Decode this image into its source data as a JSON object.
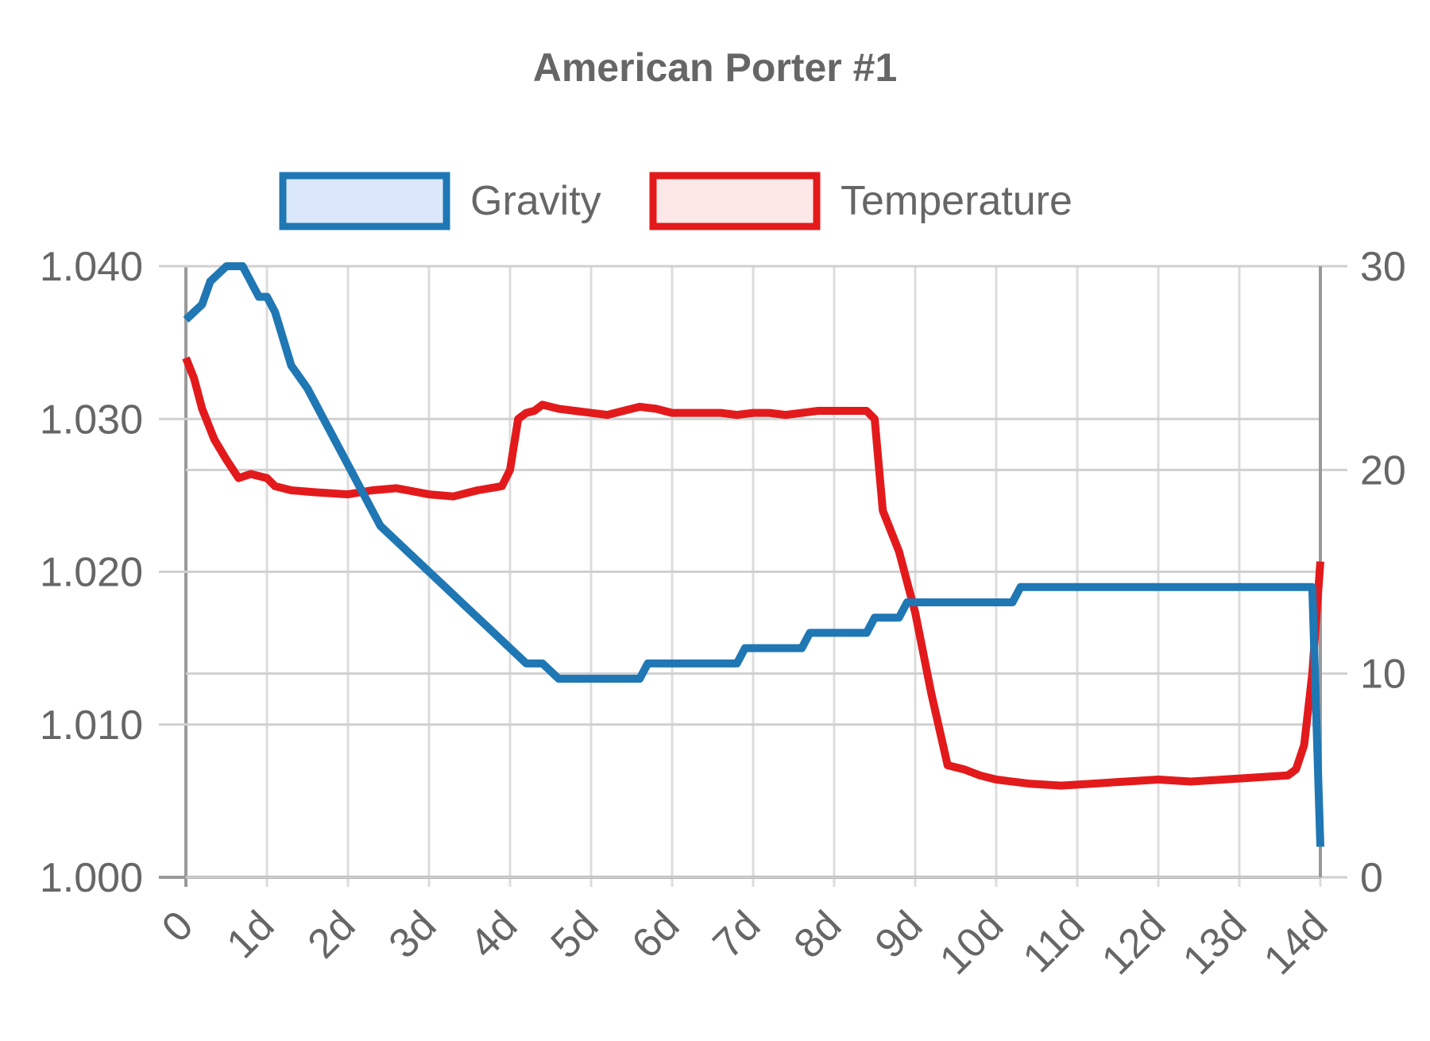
{
  "chart_data": {
    "type": "line",
    "title": "American Porter #1",
    "x_tick_labels": [
      "0",
      "1d",
      "2d",
      "3d",
      "4d",
      "5d",
      "6d",
      "7d",
      "8d",
      "9d",
      "10d",
      "11d",
      "12d",
      "13d",
      "14d"
    ],
    "xlim": [
      0,
      14
    ],
    "y_left": {
      "label": "",
      "tick_labels": [
        "1.000",
        "1.010",
        "1.020",
        "1.030",
        "1.040"
      ],
      "ylim": [
        1.0,
        1.04
      ]
    },
    "y_right": {
      "label": "",
      "tick_labels": [
        "0",
        "10",
        "20",
        "30"
      ],
      "ylim": [
        0,
        30
      ]
    },
    "grid": true,
    "legend": "top",
    "series": [
      {
        "name": "Gravity",
        "axis": "left",
        "color": "#1f77b4",
        "fill": "#dbe8fb",
        "x": [
          0,
          0.1,
          0.2,
          0.3,
          0.4,
          0.5,
          0.6,
          0.7,
          0.8,
          0.9,
          1.0,
          1.1,
          1.3,
          1.5,
          1.6,
          1.7,
          1.8,
          2.0,
          2.2,
          2.4,
          2.6,
          2.8,
          3.0,
          3.2,
          3.4,
          3.6,
          3.8,
          4.0,
          4.2,
          4.4,
          4.6,
          4.8,
          5.0,
          5.3,
          5.6,
          5.7,
          6.0,
          6.4,
          6.8,
          6.9,
          7.2,
          7.6,
          7.7,
          8.0,
          8.4,
          8.5,
          8.8,
          8.9,
          9.3,
          10.0,
          10.2,
          10.3,
          11.0,
          12.0,
          13.0,
          13.7,
          13.9,
          14.0
        ],
        "values": [
          1.0365,
          1.037,
          1.0375,
          1.039,
          1.0395,
          1.04,
          1.04,
          1.04,
          1.039,
          1.038,
          1.038,
          1.037,
          1.0335,
          1.032,
          1.031,
          1.03,
          1.029,
          1.027,
          1.025,
          1.023,
          1.022,
          1.021,
          1.02,
          1.019,
          1.018,
          1.017,
          1.016,
          1.015,
          1.014,
          1.014,
          1.013,
          1.013,
          1.013,
          1.013,
          1.013,
          1.014,
          1.014,
          1.014,
          1.014,
          1.015,
          1.015,
          1.015,
          1.016,
          1.016,
          1.016,
          1.017,
          1.017,
          1.018,
          1.018,
          1.018,
          1.018,
          1.019,
          1.019,
          1.019,
          1.019,
          1.019,
          1.019,
          1.002
        ]
      },
      {
        "name": "Temperature",
        "axis": "right",
        "color": "#e31a1c",
        "fill": "#fde8e8",
        "x": [
          0,
          0.1,
          0.2,
          0.35,
          0.5,
          0.65,
          0.8,
          1.0,
          1.1,
          1.3,
          1.6,
          2.0,
          2.3,
          2.6,
          3.0,
          3.3,
          3.6,
          3.9,
          4.0,
          4.1,
          4.2,
          4.3,
          4.4,
          4.6,
          4.8,
          5.0,
          5.2,
          5.4,
          5.6,
          5.8,
          6.0,
          6.2,
          6.4,
          6.6,
          6.8,
          7.0,
          7.2,
          7.4,
          7.6,
          7.8,
          8.0,
          8.2,
          8.4,
          8.5,
          8.6,
          8.8,
          9.0,
          9.2,
          9.4,
          9.6,
          9.8,
          10.0,
          10.4,
          10.8,
          11.2,
          11.6,
          12.0,
          12.4,
          12.8,
          13.2,
          13.6,
          13.7,
          13.8,
          13.9,
          14.0
        ],
        "values": [
          25.5,
          24.5,
          23,
          21.5,
          20.5,
          19.6,
          19.8,
          19.6,
          19.2,
          19.0,
          18.9,
          18.8,
          19.0,
          19.1,
          18.8,
          18.7,
          19.0,
          19.2,
          20.0,
          22.5,
          22.8,
          22.9,
          23.2,
          23.0,
          22.9,
          22.8,
          22.7,
          22.9,
          23.1,
          23.0,
          22.8,
          22.8,
          22.8,
          22.8,
          22.7,
          22.8,
          22.8,
          22.7,
          22.8,
          22.9,
          22.9,
          22.9,
          22.9,
          22.5,
          18.0,
          16.0,
          13.0,
          9.0,
          5.5,
          5.3,
          5.0,
          4.8,
          4.6,
          4.5,
          4.6,
          4.7,
          4.8,
          4.7,
          4.8,
          4.9,
          5.0,
          5.3,
          6.5,
          10.0,
          15.5
        ]
      }
    ]
  }
}
